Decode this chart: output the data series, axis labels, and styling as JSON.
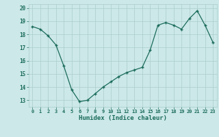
{
  "x": [
    0,
    1,
    2,
    3,
    4,
    5,
    6,
    7,
    8,
    9,
    10,
    11,
    12,
    13,
    14,
    15,
    16,
    17,
    18,
    19,
    20,
    21,
    22,
    23
  ],
  "y": [
    18.6,
    18.4,
    17.9,
    17.2,
    15.6,
    13.8,
    12.9,
    13.0,
    13.5,
    14.0,
    14.4,
    14.8,
    15.1,
    15.3,
    15.5,
    16.8,
    18.7,
    18.9,
    18.7,
    18.4,
    19.2,
    19.8,
    18.7,
    17.4
  ],
  "xlabel": "Humidex (Indice chaleur)",
  "xlim_min": -0.5,
  "xlim_max": 23.5,
  "ylim_min": 12.5,
  "ylim_max": 20.3,
  "yticks": [
    13,
    14,
    15,
    16,
    17,
    18,
    19,
    20
  ],
  "xticks": [
    0,
    1,
    2,
    3,
    4,
    5,
    6,
    7,
    8,
    9,
    10,
    11,
    12,
    13,
    14,
    15,
    16,
    17,
    18,
    19,
    20,
    21,
    22,
    23
  ],
  "xtick_labels": [
    "0",
    "1",
    "2",
    "3",
    "4",
    "5",
    "6",
    "7",
    "8",
    "9",
    "10",
    "11",
    "12",
    "13",
    "14",
    "15",
    "16",
    "17",
    "18",
    "19",
    "20",
    "21",
    "22",
    "23"
  ],
  "line_color": "#1a6b5a",
  "bg_color": "#cce8e8",
  "grid_color": "#aacccc",
  "tick_color": "#1a6b5a",
  "xlabel_color": "#1a6b5a"
}
